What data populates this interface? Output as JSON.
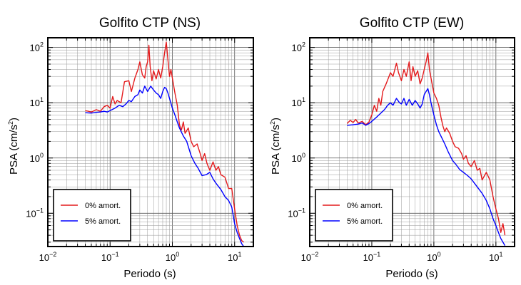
{
  "chart_data": [
    {
      "type": "line",
      "title": "Golfito CTP (NS)",
      "xlabel": "Periodo (s)",
      "ylabel_main": "PSA (cm/s",
      "ylabel_sup": "2",
      "ylabel_tail": ")",
      "xscale": "log",
      "yscale": "log",
      "xlim": [
        0.01,
        20
      ],
      "ylim": [
        0.025,
        150
      ],
      "grid": true,
      "legend_position": "bottom-left",
      "xticks": [
        {
          "base": "10",
          "exp": "−2"
        },
        {
          "base": "10",
          "exp": "−1"
        },
        {
          "base": "10",
          "exp": "0"
        },
        {
          "base": "10",
          "exp": "1"
        }
      ],
      "yticks": [
        {
          "label": "10",
          "sup": "−1",
          "value": 0.1
        },
        {
          "label": "10",
          "sup": "0",
          "value": 1
        },
        {
          "label": "10",
          "sup": "1",
          "value": 10
        },
        {
          "label": "10",
          "sup": "2",
          "value": 100
        }
      ],
      "series": [
        {
          "name": "0% amort.",
          "color": "#e41a1c",
          "points": [
            [
              0.04,
              7.2
            ],
            [
              0.045,
              7.0
            ],
            [
              0.05,
              6.8
            ],
            [
              0.06,
              7.5
            ],
            [
              0.07,
              7.0
            ],
            [
              0.08,
              8.5
            ],
            [
              0.09,
              9.0
            ],
            [
              0.1,
              8.0
            ],
            [
              0.11,
              13.0
            ],
            [
              0.12,
              9.5
            ],
            [
              0.13,
              11.0
            ],
            [
              0.15,
              10.0
            ],
            [
              0.17,
              24.0
            ],
            [
              0.2,
              25.0
            ],
            [
              0.22,
              16.0
            ],
            [
              0.25,
              28.0
            ],
            [
              0.28,
              40.0
            ],
            [
              0.3,
              55.0
            ],
            [
              0.33,
              32.0
            ],
            [
              0.36,
              28.0
            ],
            [
              0.38,
              45.0
            ],
            [
              0.4,
              55.0
            ],
            [
              0.42,
              110.0
            ],
            [
              0.44,
              45.0
            ],
            [
              0.47,
              25.0
            ],
            [
              0.5,
              38.0
            ],
            [
              0.55,
              27.0
            ],
            [
              0.6,
              40.0
            ],
            [
              0.65,
              28.0
            ],
            [
              0.7,
              45.0
            ],
            [
              0.75,
              80.0
            ],
            [
              0.8,
              125.0
            ],
            [
              0.85,
              60.0
            ],
            [
              0.9,
              30.0
            ],
            [
              0.95,
              40.0
            ],
            [
              1.0,
              28.0
            ],
            [
              1.1,
              15.0
            ],
            [
              1.2,
              9.0
            ],
            [
              1.3,
              4.0
            ],
            [
              1.4,
              3.2
            ],
            [
              1.5,
              4.5
            ],
            [
              1.6,
              2.8
            ],
            [
              1.8,
              3.5
            ],
            [
              2.0,
              2.0
            ],
            [
              2.2,
              1.6
            ],
            [
              2.5,
              1.8
            ],
            [
              2.8,
              1.2
            ],
            [
              3.0,
              0.9
            ],
            [
              3.3,
              1.2
            ],
            [
              3.6,
              0.8
            ],
            [
              4.0,
              0.6
            ],
            [
              4.5,
              0.85
            ],
            [
              5.0,
              0.6
            ],
            [
              5.5,
              0.7
            ],
            [
              6.0,
              0.5
            ],
            [
              7.0,
              0.45
            ],
            [
              8.0,
              0.28
            ],
            [
              9.0,
              0.28
            ],
            [
              10.0,
              0.12
            ],
            [
              11.0,
              0.06
            ],
            [
              12.0,
              0.04
            ],
            [
              13.0,
              0.032
            ],
            [
              14.0,
              0.03
            ]
          ]
        },
        {
          "name": "5% amort.",
          "color": "#0000ff",
          "points": [
            [
              0.04,
              6.6
            ],
            [
              0.05,
              6.5
            ],
            [
              0.06,
              6.7
            ],
            [
              0.07,
              6.8
            ],
            [
              0.08,
              7.0
            ],
            [
              0.09,
              6.8
            ],
            [
              0.1,
              7.2
            ],
            [
              0.12,
              8.0
            ],
            [
              0.14,
              9.0
            ],
            [
              0.16,
              8.5
            ],
            [
              0.18,
              9.5
            ],
            [
              0.2,
              11.0
            ],
            [
              0.22,
              10.5
            ],
            [
              0.25,
              13.0
            ],
            [
              0.28,
              14.0
            ],
            [
              0.3,
              17.0
            ],
            [
              0.33,
              15.0
            ],
            [
              0.36,
              20.0
            ],
            [
              0.4,
              16.0
            ],
            [
              0.45,
              20.0
            ],
            [
              0.5,
              17.0
            ],
            [
              0.55,
              15.0
            ],
            [
              0.6,
              14.0
            ],
            [
              0.65,
              12.0
            ],
            [
              0.7,
              16.0
            ],
            [
              0.75,
              19.0
            ],
            [
              0.8,
              18.0
            ],
            [
              0.85,
              15.0
            ],
            [
              0.9,
              12.0
            ],
            [
              1.0,
              8.0
            ],
            [
              1.1,
              6.0
            ],
            [
              1.2,
              4.5
            ],
            [
              1.3,
              3.5
            ],
            [
              1.5,
              2.5
            ],
            [
              1.7,
              2.0
            ],
            [
              2.0,
              1.1
            ],
            [
              2.3,
              0.8
            ],
            [
              2.6,
              0.65
            ],
            [
              3.0,
              0.48
            ],
            [
              3.5,
              0.5
            ],
            [
              4.0,
              0.55
            ],
            [
              4.5,
              0.42
            ],
            [
              5.0,
              0.35
            ],
            [
              6.0,
              0.27
            ],
            [
              7.0,
              0.2
            ],
            [
              8.0,
              0.17
            ],
            [
              9.0,
              0.13
            ],
            [
              10.0,
              0.065
            ],
            [
              11.0,
              0.045
            ],
            [
              12.0,
              0.035
            ],
            [
              13.0,
              0.028
            ],
            [
              14.0,
              0.025
            ]
          ]
        }
      ]
    },
    {
      "type": "line",
      "title": "Golfito CTP (EW)",
      "xlabel": "Periodo (s)",
      "ylabel_main": "PSA (cm/s",
      "ylabel_sup": "2",
      "ylabel_tail": ")",
      "xscale": "log",
      "yscale": "log",
      "xlim": [
        0.01,
        20
      ],
      "ylim": [
        0.025,
        150
      ],
      "grid": true,
      "legend_position": "bottom-left",
      "xticks": [
        {
          "base": "10",
          "exp": "−2"
        },
        {
          "base": "10",
          "exp": "−1"
        },
        {
          "base": "10",
          "exp": "0"
        },
        {
          "base": "10",
          "exp": "1"
        }
      ],
      "yticks": [
        {
          "label": "10",
          "sup": "−1",
          "value": 0.1
        },
        {
          "label": "10",
          "sup": "0",
          "value": 1
        },
        {
          "label": "10",
          "sup": "1",
          "value": 10
        },
        {
          "label": "10",
          "sup": "2",
          "value": 100
        }
      ],
      "series": [
        {
          "name": "0% amort.",
          "color": "#e41a1c",
          "points": [
            [
              0.04,
              4.2
            ],
            [
              0.045,
              4.8
            ],
            [
              0.05,
              4.4
            ],
            [
              0.055,
              5.0
            ],
            [
              0.06,
              4.3
            ],
            [
              0.07,
              4.6
            ],
            [
              0.08,
              4.0
            ],
            [
              0.09,
              4.5
            ],
            [
              0.1,
              6.0
            ],
            [
              0.11,
              9.0
            ],
            [
              0.12,
              7.0
            ],
            [
              0.13,
              12.0
            ],
            [
              0.14,
              9.0
            ],
            [
              0.15,
              16.0
            ],
            [
              0.17,
              22.0
            ],
            [
              0.2,
              35.0
            ],
            [
              0.22,
              30.0
            ],
            [
              0.25,
              52.0
            ],
            [
              0.27,
              35.0
            ],
            [
              0.3,
              25.0
            ],
            [
              0.33,
              40.0
            ],
            [
              0.36,
              30.0
            ],
            [
              0.4,
              55.0
            ],
            [
              0.43,
              25.0
            ],
            [
              0.46,
              45.0
            ],
            [
              0.5,
              30.0
            ],
            [
              0.55,
              38.0
            ],
            [
              0.6,
              22.0
            ],
            [
              0.65,
              28.0
            ],
            [
              0.7,
              40.0
            ],
            [
              0.75,
              55.0
            ],
            [
              0.8,
              80.0
            ],
            [
              0.85,
              40.0
            ],
            [
              0.9,
              28.0
            ],
            [
              1.0,
              15.0
            ],
            [
              1.1,
              12.0
            ],
            [
              1.2,
              9.0
            ],
            [
              1.3,
              5.5
            ],
            [
              1.4,
              3.8
            ],
            [
              1.5,
              3.0
            ],
            [
              1.6,
              3.5
            ],
            [
              1.8,
              2.8
            ],
            [
              2.0,
              2.0
            ],
            [
              2.2,
              1.6
            ],
            [
              2.5,
              1.5
            ],
            [
              2.8,
              1.2
            ],
            [
              3.0,
              0.95
            ],
            [
              3.3,
              1.1
            ],
            [
              3.6,
              0.8
            ],
            [
              4.0,
              0.7
            ],
            [
              4.5,
              0.9
            ],
            [
              5.0,
              0.6
            ],
            [
              5.5,
              0.65
            ],
            [
              6.0,
              0.4
            ],
            [
              7.0,
              0.55
            ],
            [
              8.0,
              0.4
            ],
            [
              9.0,
              0.2
            ],
            [
              10.0,
              0.12
            ],
            [
              11.0,
              0.08
            ],
            [
              12.0,
              0.045
            ],
            [
              13.0,
              0.065
            ],
            [
              14.0,
              0.04
            ]
          ]
        },
        {
          "name": "5% amort.",
          "color": "#0000ff",
          "points": [
            [
              0.04,
              3.9
            ],
            [
              0.05,
              4.0
            ],
            [
              0.06,
              4.1
            ],
            [
              0.07,
              4.3
            ],
            [
              0.08,
              3.9
            ],
            [
              0.09,
              4.2
            ],
            [
              0.1,
              4.6
            ],
            [
              0.12,
              5.5
            ],
            [
              0.14,
              6.5
            ],
            [
              0.16,
              7.5
            ],
            [
              0.18,
              9.0
            ],
            [
              0.2,
              10.0
            ],
            [
              0.22,
              9.0
            ],
            [
              0.25,
              12.0
            ],
            [
              0.28,
              10.0
            ],
            [
              0.3,
              9.5
            ],
            [
              0.33,
              12.0
            ],
            [
              0.36,
              9.0
            ],
            [
              0.4,
              11.5
            ],
            [
              0.45,
              9.0
            ],
            [
              0.5,
              11.0
            ],
            [
              0.55,
              9.5
            ],
            [
              0.6,
              8.0
            ],
            [
              0.65,
              9.5
            ],
            [
              0.7,
              14.0
            ],
            [
              0.75,
              16.0
            ],
            [
              0.8,
              18.0
            ],
            [
              0.85,
              14.0
            ],
            [
              0.9,
              10.0
            ],
            [
              1.0,
              6.0
            ],
            [
              1.1,
              4.0
            ],
            [
              1.2,
              3.0
            ],
            [
              1.3,
              2.5
            ],
            [
              1.5,
              1.8
            ],
            [
              1.7,
              1.3
            ],
            [
              2.0,
              0.9
            ],
            [
              2.3,
              0.75
            ],
            [
              2.6,
              0.62
            ],
            [
              3.0,
              0.55
            ],
            [
              3.5,
              0.48
            ],
            [
              4.0,
              0.42
            ],
            [
              4.5,
              0.35
            ],
            [
              5.0,
              0.3
            ],
            [
              6.0,
              0.23
            ],
            [
              7.0,
              0.17
            ],
            [
              8.0,
              0.12
            ],
            [
              9.0,
              0.08
            ],
            [
              10.0,
              0.06
            ],
            [
              11.0,
              0.045
            ],
            [
              12.0,
              0.035
            ],
            [
              13.0,
              0.03
            ],
            [
              14.0,
              0.026
            ]
          ]
        }
      ]
    }
  ]
}
